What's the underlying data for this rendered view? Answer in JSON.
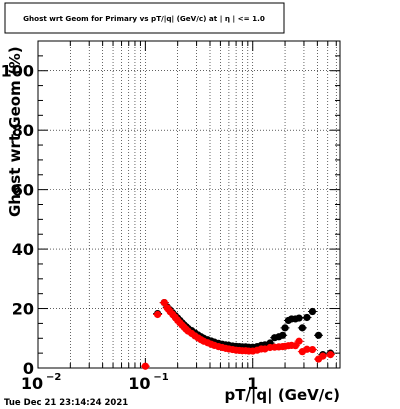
{
  "chart_data": {
    "type": "scatter",
    "title": "Ghost wrt Geom for Primary vs pT/|q| (GeV/c) at | η | <= 1.0",
    "xlabel": "pT/|q| (GeV/c)",
    "ylabel": "Ghost wrt Geom (%)",
    "xscale": "log",
    "xlim": [
      0.01,
      6.5
    ],
    "ylim": [
      0,
      110
    ],
    "xticks": [
      {
        "value": 0.01,
        "base": "10",
        "exp": "−2"
      },
      {
        "value": 0.1,
        "base": "10",
        "exp": "−1"
      },
      {
        "value": 1,
        "base": "1",
        "exp": ""
      }
    ],
    "yticks": [
      0,
      20,
      40,
      60,
      80,
      100
    ],
    "grid": true,
    "series": [
      {
        "color": "#000000",
        "points": [
          [
            0.13,
            18.3
          ],
          [
            0.15,
            22.0
          ],
          [
            0.16,
            20.5
          ],
          [
            0.17,
            19.5
          ],
          [
            0.18,
            18.5
          ],
          [
            0.19,
            17.6
          ],
          [
            0.2,
            16.8
          ],
          [
            0.21,
            16.0
          ],
          [
            0.22,
            15.2
          ],
          [
            0.23,
            14.5
          ],
          [
            0.24,
            13.9
          ],
          [
            0.25,
            13.3
          ],
          [
            0.27,
            12.6
          ],
          [
            0.29,
            11.8
          ],
          [
            0.31,
            11.1
          ],
          [
            0.33,
            10.5
          ],
          [
            0.35,
            10.0
          ],
          [
            0.38,
            9.5
          ],
          [
            0.41,
            9.1
          ],
          [
            0.44,
            8.7
          ],
          [
            0.48,
            8.3
          ],
          [
            0.52,
            8.0
          ],
          [
            0.56,
            7.8
          ],
          [
            0.6,
            7.6
          ],
          [
            0.65,
            7.4
          ],
          [
            0.7,
            7.3
          ],
          [
            0.75,
            7.2
          ],
          [
            0.8,
            7.1
          ],
          [
            0.86,
            7.1
          ],
          [
            0.92,
            7.0
          ],
          [
            1.0,
            7.0
          ],
          [
            1.1,
            7.2
          ],
          [
            1.2,
            7.6
          ],
          [
            1.3,
            7.8
          ],
          [
            1.45,
            8.4
          ],
          [
            1.6,
            10.2
          ],
          [
            1.75,
            10.5
          ],
          [
            1.9,
            11.0
          ],
          [
            2.0,
            13.5
          ],
          [
            2.15,
            16.0
          ],
          [
            2.3,
            16.5
          ],
          [
            2.5,
            16.5
          ],
          [
            2.7,
            16.8
          ],
          [
            2.9,
            13.5
          ],
          [
            3.2,
            17.0
          ],
          [
            3.6,
            19.0
          ],
          [
            4.1,
            11.0
          ],
          [
            4.5,
            4.5
          ],
          [
            5.3,
            5.0
          ]
        ]
      },
      {
        "color": "#ff0000",
        "points": [
          [
            0.1,
            0.6
          ],
          [
            0.13,
            18.0
          ],
          [
            0.15,
            22.0
          ],
          [
            0.16,
            20.2
          ],
          [
            0.17,
            19.0
          ],
          [
            0.18,
            18.0
          ],
          [
            0.19,
            17.0
          ],
          [
            0.2,
            16.0
          ],
          [
            0.21,
            15.2
          ],
          [
            0.22,
            14.4
          ],
          [
            0.23,
            13.7
          ],
          [
            0.24,
            13.0
          ],
          [
            0.25,
            12.4
          ],
          [
            0.27,
            11.6
          ],
          [
            0.29,
            10.8
          ],
          [
            0.31,
            10.1
          ],
          [
            0.33,
            9.5
          ],
          [
            0.35,
            9.0
          ],
          [
            0.38,
            8.5
          ],
          [
            0.41,
            8.0
          ],
          [
            0.44,
            7.6
          ],
          [
            0.48,
            7.2
          ],
          [
            0.52,
            6.9
          ],
          [
            0.56,
            6.6
          ],
          [
            0.6,
            6.4
          ],
          [
            0.65,
            6.2
          ],
          [
            0.7,
            6.0
          ],
          [
            0.75,
            5.9
          ],
          [
            0.8,
            5.8
          ],
          [
            0.86,
            5.8
          ],
          [
            0.92,
            5.7
          ],
          [
            1.0,
            5.7
          ],
          [
            1.1,
            6.0
          ],
          [
            1.2,
            6.4
          ],
          [
            1.3,
            6.4
          ],
          [
            1.45,
            6.9
          ],
          [
            1.6,
            7.0
          ],
          [
            1.75,
            7.1
          ],
          [
            1.9,
            7.2
          ],
          [
            2.0,
            7.3
          ],
          [
            2.15,
            7.5
          ],
          [
            2.3,
            7.6
          ],
          [
            2.5,
            7.5
          ],
          [
            2.7,
            9.0
          ],
          [
            2.9,
            5.5
          ],
          [
            3.2,
            6.3
          ],
          [
            3.6,
            6.2
          ],
          [
            4.1,
            3.0
          ],
          [
            4.5,
            4.0
          ],
          [
            5.3,
            4.5
          ]
        ]
      }
    ]
  },
  "footer": {
    "timestamp": "Tue Dec 21 23:14:24 2021"
  }
}
